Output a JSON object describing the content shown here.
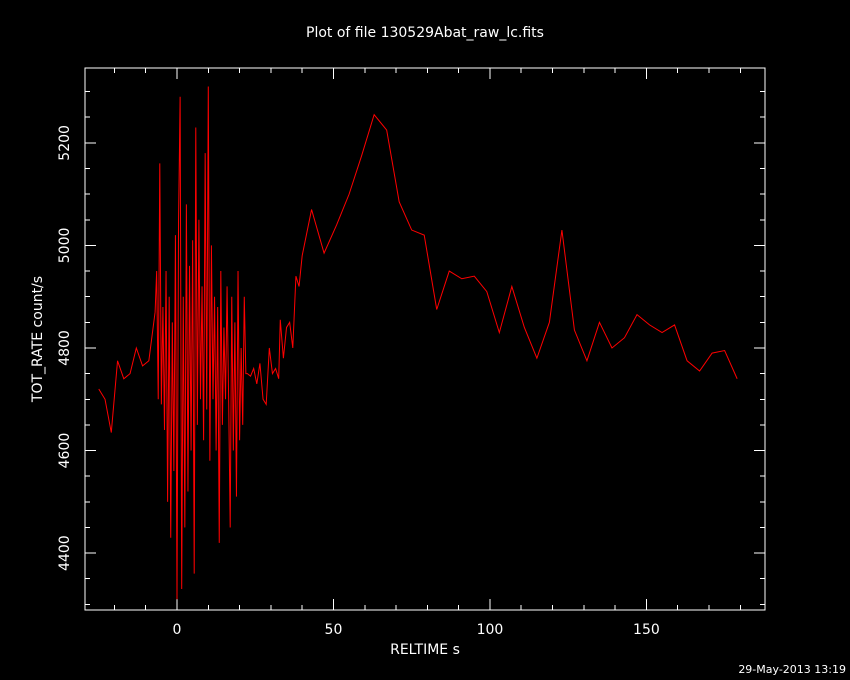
{
  "chart_data": {
    "type": "line",
    "title": "Plot of file 130529Abat_raw_lc.fits",
    "x_label": "RELTIME  s",
    "y_label": "TOT_RATE  count/s",
    "footer": "29-May-2013 13:19",
    "color": "#ff0000",
    "xlim": [
      -29.4,
      187.9
    ],
    "ylim": [
      4289,
      5346
    ],
    "xticks": [
      0,
      50,
      100,
      150
    ],
    "yticks": [
      4400,
      4600,
      4800,
      5000,
      5200
    ],
    "xticks_minor": [
      -20,
      -10,
      10,
      20,
      30,
      40,
      60,
      70,
      80,
      90,
      110,
      120,
      130,
      140,
      160,
      170,
      180
    ],
    "yticks_minor": [
      4300,
      4350,
      4450,
      4500,
      4550,
      4650,
      4700,
      4750,
      4850,
      4900,
      4950,
      5050,
      5100,
      5150,
      5250,
      5300
    ],
    "x": [
      -25,
      -23,
      -21,
      -19,
      -17,
      -15,
      -13,
      -11,
      -9,
      -7,
      -6.5,
      -6,
      -5.5,
      -5,
      -4.5,
      -4,
      -3.5,
      -3,
      -2.5,
      -2,
      -1.5,
      -1,
      -0.5,
      0,
      0.5,
      1,
      1.5,
      2,
      2.5,
      3,
      3.5,
      4,
      4.5,
      5,
      5.5,
      6,
      6.5,
      7,
      7.5,
      8,
      8.5,
      9,
      9.5,
      10,
      10.5,
      11,
      11.5,
      12,
      12.5,
      13,
      13.5,
      14,
      14.5,
      15,
      15.5,
      16,
      16.5,
      17,
      17.5,
      18,
      18.5,
      19,
      19.5,
      20,
      20.5,
      21,
      21.5,
      22,
      22.5,
      23.5,
      24.5,
      25.5,
      26.5,
      27.5,
      28.5,
      29.5,
      30.5,
      31.5,
      32.5,
      33,
      34,
      35,
      36,
      37,
      38,
      39,
      40,
      43,
      47,
      51,
      55,
      59,
      63,
      67,
      71,
      75,
      79,
      83,
      87,
      91,
      95,
      99,
      103,
      107,
      111,
      115,
      119,
      123,
      127,
      131,
      135,
      139,
      143,
      147,
      151,
      155,
      159,
      163,
      167,
      171,
      175,
      179
    ],
    "values": [
      4720,
      4700,
      4635,
      4775,
      4740,
      4750,
      4800,
      4765,
      4775,
      4870,
      4950,
      4700,
      5160,
      4690,
      4880,
      4640,
      4950,
      4500,
      4900,
      4430,
      4850,
      4560,
      5020,
      4310,
      5050,
      5290,
      4330,
      4900,
      4450,
      5080,
      4520,
      4960,
      4600,
      5010,
      4360,
      5230,
      4650,
      5050,
      4700,
      4920,
      4620,
      5180,
      4680,
      5310,
      4580,
      5000,
      4700,
      4900,
      4600,
      4880,
      4420,
      4950,
      4650,
      4840,
      4700,
      4920,
      4700,
      4450,
      4900,
      4600,
      4850,
      4510,
      4950,
      4620,
      4800,
      4650,
      4900,
      4750,
      4750,
      4745,
      4760,
      4730,
      4770,
      4700,
      4690,
      4800,
      4750,
      4760,
      4740,
      4855,
      4780,
      4840,
      4850,
      4800,
      4940,
      4920,
      4980,
      5070,
      4985,
      5040,
      5100,
      5175,
      5255,
      5225,
      5085,
      5030,
      5020,
      4875,
      4950,
      4935,
      4940,
      4910,
      4830,
      4920,
      4840,
      4780,
      4850,
      5030,
      4835,
      4775,
      4850,
      4800,
      4820,
      4865,
      4845,
      4830,
      4845,
      4775,
      4755,
      4790,
      4795,
      4740
    ]
  }
}
